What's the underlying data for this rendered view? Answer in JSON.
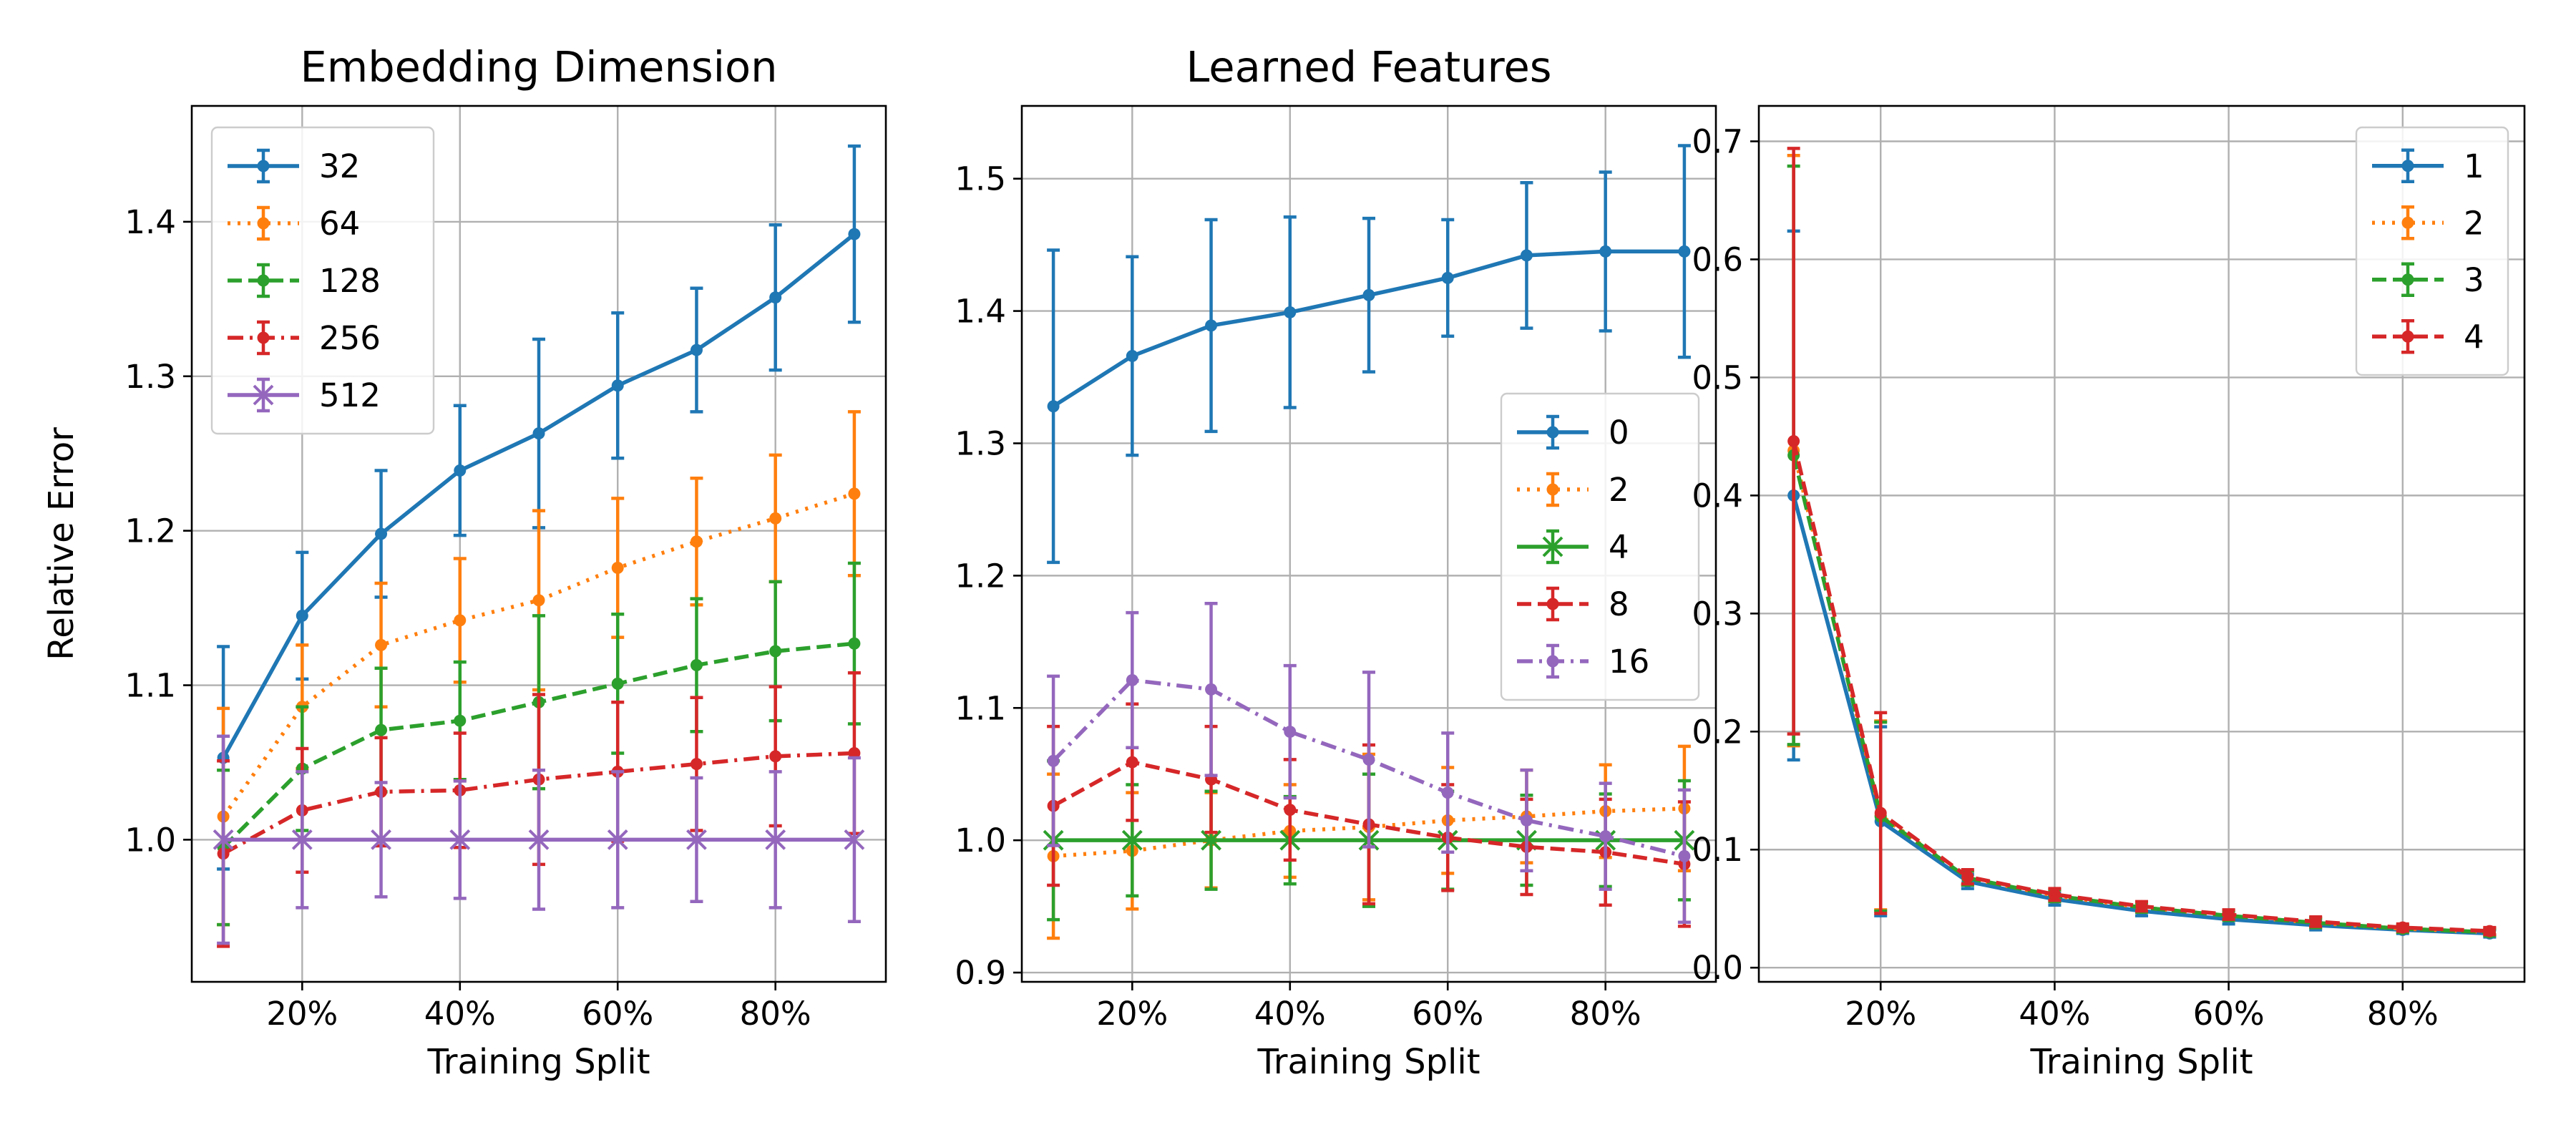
{
  "chart_data": [
    {
      "type": "line",
      "title": "Embedding Dimension",
      "xlabel": "Training Split",
      "ylabel": "Relative Error",
      "x": [
        10,
        20,
        30,
        40,
        50,
        60,
        70,
        80,
        90
      ],
      "xlim": [
        6,
        94
      ],
      "ylim": [
        0.908,
        1.475
      ],
      "xticks": [
        20,
        40,
        60,
        80
      ],
      "xtick_labels": [
        "20%",
        "40%",
        "60%",
        "80%"
      ],
      "yticks": [
        1.0,
        1.1,
        1.2,
        1.3,
        1.4
      ],
      "ytick_labels": [
        "1.0",
        "1.1",
        "1.2",
        "1.3",
        "1.4"
      ],
      "grid": true,
      "legend": "top-left",
      "series": [
        {
          "name": "32",
          "color": "#1f77b4",
          "dash": "solid",
          "marker": "dot",
          "values": [
            1.053,
            1.145,
            1.198,
            1.239,
            1.263,
            1.294,
            1.317,
            1.351,
            1.392
          ],
          "errors": [
            0.072,
            0.041,
            0.041,
            0.042,
            0.061,
            0.047,
            0.04,
            0.047,
            0.057
          ]
        },
        {
          "name": "64",
          "color": "#ff7f0e",
          "dash": "dotted",
          "marker": "dot",
          "values": [
            1.015,
            1.086,
            1.126,
            1.142,
            1.155,
            1.176,
            1.193,
            1.208,
            1.224
          ],
          "errors": [
            0.07,
            0.04,
            0.04,
            0.04,
            0.058,
            0.045,
            0.041,
            0.041,
            0.053
          ]
        },
        {
          "name": "128",
          "color": "#2ca02c",
          "dash": "dashed",
          "marker": "dot",
          "values": [
            0.995,
            1.046,
            1.071,
            1.077,
            1.089,
            1.101,
            1.113,
            1.122,
            1.127
          ],
          "errors": [
            0.05,
            0.04,
            0.04,
            0.038,
            0.056,
            0.045,
            0.043,
            0.045,
            0.052
          ]
        },
        {
          "name": "256",
          "color": "#d62728",
          "dash": "dashdot",
          "marker": "dot",
          "values": [
            0.991,
            1.019,
            1.031,
            1.032,
            1.039,
            1.044,
            1.049,
            1.054,
            1.056
          ],
          "errors": [
            0.06,
            0.04,
            0.035,
            0.037,
            0.055,
            0.045,
            0.043,
            0.045,
            0.052
          ]
        },
        {
          "name": "512",
          "color": "#9467bd",
          "dash": "solid",
          "marker": "x",
          "values": [
            1.0,
            1.0,
            1.0,
            1.0,
            1.0,
            1.0,
            1.0,
            1.0,
            1.0
          ],
          "errors": [
            0.067,
            0.044,
            0.037,
            0.038,
            0.045,
            0.044,
            0.04,
            0.044,
            0.053
          ]
        }
      ]
    },
    {
      "type": "line",
      "title": "Learned Features",
      "xlabel": "Training Split",
      "ylabel": "",
      "x": [
        10,
        20,
        30,
        40,
        50,
        60,
        70,
        80,
        90
      ],
      "xlim": [
        6,
        94
      ],
      "ylim": [
        0.893,
        1.555
      ],
      "xticks": [
        20,
        40,
        60,
        80
      ],
      "xtick_labels": [
        "20%",
        "40%",
        "60%",
        "80%"
      ],
      "yticks": [
        0.9,
        1.0,
        1.1,
        1.2,
        1.3,
        1.4,
        1.5
      ],
      "ytick_labels": [
        "0.9",
        "1.0",
        "1.1",
        "1.2",
        "1.3",
        "1.4",
        "1.5"
      ],
      "grid": true,
      "legend": "center-right",
      "series": [
        {
          "name": "0",
          "color": "#1f77b4",
          "dash": "solid",
          "marker": "dot",
          "values": [
            1.328,
            1.366,
            1.389,
            1.399,
            1.412,
            1.425,
            1.442,
            1.445,
            1.445
          ],
          "errors": [
            0.118,
            0.075,
            0.08,
            0.072,
            0.058,
            0.044,
            0.055,
            0.06,
            0.08
          ]
        },
        {
          "name": "2",
          "color": "#ff7f0e",
          "dash": "dotted",
          "marker": "dot",
          "values": [
            0.988,
            0.992,
            1.0,
            1.007,
            1.01,
            1.015,
            1.018,
            1.022,
            1.024
          ],
          "errors": [
            0.062,
            0.044,
            0.036,
            0.035,
            0.055,
            0.04,
            0.035,
            0.035,
            0.047
          ]
        },
        {
          "name": "4",
          "color": "#2ca02c",
          "dash": "solid",
          "marker": "x",
          "values": [
            1.0,
            1.0,
            1.0,
            1.0,
            1.0,
            1.0,
            1.0,
            1.0,
            1.0
          ],
          "errors": [
            0.06,
            0.042,
            0.037,
            0.033,
            0.05,
            0.037,
            0.034,
            0.035,
            0.045
          ]
        },
        {
          "name": "8",
          "color": "#d62728",
          "dash": "dashed",
          "marker": "dot",
          "values": [
            1.026,
            1.059,
            1.046,
            1.023,
            1.012,
            1.002,
            0.995,
            0.991,
            0.982
          ],
          "errors": [
            0.06,
            0.044,
            0.04,
            0.038,
            0.06,
            0.04,
            0.036,
            0.04,
            0.047
          ]
        },
        {
          "name": "16",
          "color": "#9467bd",
          "dash": "dashdot",
          "marker": "dot",
          "values": [
            1.06,
            1.121,
            1.114,
            1.082,
            1.061,
            1.036,
            1.015,
            1.003,
            0.988
          ],
          "errors": [
            0.064,
            0.051,
            0.065,
            0.05,
            0.066,
            0.045,
            0.038,
            0.04,
            0.05
          ]
        }
      ]
    },
    {
      "type": "line",
      "title": "",
      "xlabel": "Training Split",
      "ylabel": "",
      "x": [
        10,
        20,
        30,
        40,
        50,
        60,
        70,
        80,
        90
      ],
      "xlim": [
        6,
        94
      ],
      "ylim": [
        -0.012,
        0.73
      ],
      "xticks": [
        20,
        40,
        60,
        80
      ],
      "xtick_labels": [
        "20%",
        "40%",
        "60%",
        "80%"
      ],
      "yticks": [
        0.0,
        0.1,
        0.2,
        0.3,
        0.4,
        0.5,
        0.6,
        0.7
      ],
      "ytick_labels": [
        "0.0",
        "0.1",
        "0.2",
        "0.3",
        "0.4",
        "0.5",
        "0.6",
        "0.7"
      ],
      "grid": true,
      "legend": "top-right",
      "series": [
        {
          "name": "1",
          "color": "#1f77b4",
          "dash": "solid",
          "marker": "dot",
          "values": [
            0.4,
            0.124,
            0.073,
            0.058,
            0.048,
            0.041,
            0.036,
            0.032,
            0.029
          ],
          "errors": [
            0.224,
            0.08,
            0.006,
            0.005,
            0.004,
            0.004,
            0.004,
            0.003,
            0.003
          ]
        },
        {
          "name": "2",
          "color": "#ff7f0e",
          "dash": "dotted",
          "marker": "dot",
          "values": [
            0.438,
            0.129,
            0.076,
            0.061,
            0.051,
            0.044,
            0.038,
            0.033,
            0.03
          ],
          "errors": [
            0.25,
            0.08,
            0.006,
            0.005,
            0.004,
            0.004,
            0.004,
            0.003,
            0.003
          ]
        },
        {
          "name": "3",
          "color": "#2ca02c",
          "dash": "dashed",
          "marker": "dot",
          "values": [
            0.434,
            0.128,
            0.076,
            0.061,
            0.051,
            0.044,
            0.038,
            0.033,
            0.03
          ],
          "errors": [
            0.245,
            0.08,
            0.006,
            0.005,
            0.004,
            0.004,
            0.004,
            0.003,
            0.003
          ]
        },
        {
          "name": "4",
          "color": "#d62728",
          "dash": "dashed",
          "marker": "dot",
          "values": [
            0.446,
            0.131,
            0.077,
            0.062,
            0.052,
            0.045,
            0.039,
            0.034,
            0.031
          ],
          "errors": [
            0.248,
            0.085,
            0.006,
            0.005,
            0.004,
            0.004,
            0.004,
            0.003,
            0.003
          ]
        }
      ]
    }
  ]
}
